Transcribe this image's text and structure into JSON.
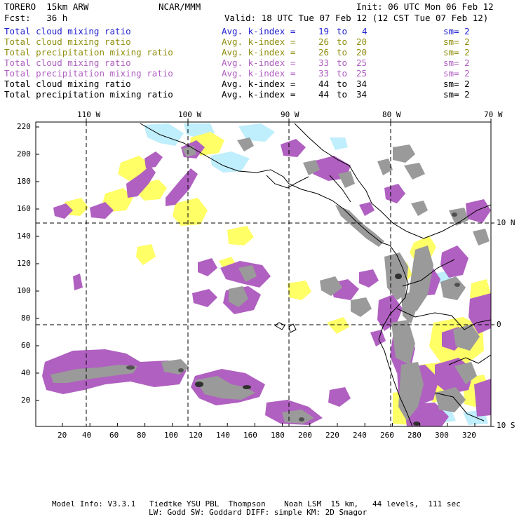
{
  "header": {
    "model": "TORERO  15km ARW",
    "org": "NCAR/MMM",
    "init": "Init: 06 UTC Mon 06 Feb 12",
    "fcst": "Fcst:   36 h",
    "valid": "Valid: 18 UTC Tue 07 Feb 12 (12 CST Tue 07 Feb 12)"
  },
  "legend": [
    {
      "field": "Total cloud mixing ratio",
      "avg": "Avg. k-index =",
      "from": "19",
      "to_word": "to",
      "to": "4",
      "sm": "sm= 2",
      "color": "#1f1fd0"
    },
    {
      "field": "Total cloud mixing ratio",
      "avg": "Avg. k-index =",
      "from": "26",
      "to_word": "to",
      "to": "20",
      "sm": "sm= 2",
      "color": "#8f8f10"
    },
    {
      "field": "Total precipitation mixing ratio",
      "avg": "Avg. k-index =",
      "from": "26",
      "to_word": "to",
      "to": "20",
      "sm": "sm= 2",
      "color": "#8f8f10"
    },
    {
      "field": "Total cloud mixing ratio",
      "avg": "Avg. k-index =",
      "from": "33",
      "to_word": "to",
      "to": "25",
      "sm": "sm= 2",
      "color": "#b060c0"
    },
    {
      "field": "Total precipitation mixing ratio",
      "avg": "Avg. k-index =",
      "from": "33",
      "to_word": "to",
      "to": "25",
      "sm": "sm= 2",
      "color": "#b060c0"
    },
    {
      "field": "Total cloud mixing ratio",
      "avg": "Avg. k-index =",
      "from": "44",
      "to_word": "to",
      "to": "34",
      "sm": "sm= 2",
      "color": "#000000"
    },
    {
      "field": "Total precipitation mixing ratio",
      "avg": "Avg. k-index =",
      "from": "44",
      "to_word": "to",
      "to": "34",
      "sm": "sm= 2",
      "color": "#000000"
    }
  ],
  "map": {
    "lon_labels": [
      "110 W",
      "100 W",
      "90 W",
      "80 W",
      "70 W"
    ],
    "lat_labels": [
      "10 N",
      "0",
      "10 S"
    ],
    "x_ticks": [
      "20",
      "40",
      "60",
      "80",
      "100",
      "120",
      "140",
      "160",
      "180",
      "200",
      "220",
      "240",
      "260",
      "280",
      "300",
      "320"
    ],
    "y_ticks": [
      "220",
      "200",
      "180",
      "160",
      "140",
      "120",
      "100",
      "80",
      "60",
      "40",
      "20"
    ],
    "colors": {
      "light_blue": "#bfeefc",
      "yellow": "#ffff66",
      "purple": "#b060c0",
      "gray": "#9a9a9a",
      "dark": "#303030"
    }
  },
  "footer": {
    "line1": "Model Info: V3.3.1   Tiedtke YSU PBL  Thompson    Noah LSM  15 km,   44 levels,  111 sec",
    "line2": "LW: Godd SW: Goddard DIFF: simple KM: 2D Smagor"
  }
}
